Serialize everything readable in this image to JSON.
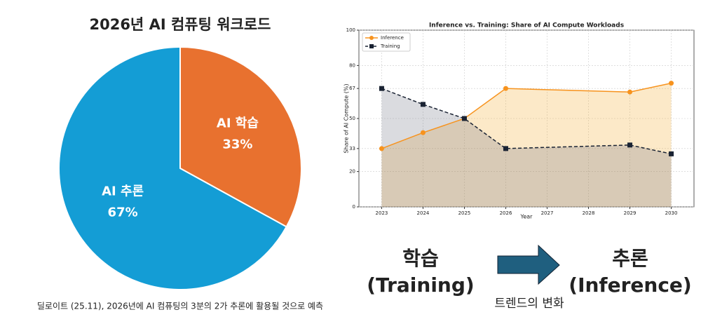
{
  "chart_data": [
    {
      "type": "pie",
      "title": "2026년 AI 컴퓨팅 워크로드",
      "categories": [
        "AI 학습",
        "AI 추론"
      ],
      "values": [
        33,
        67
      ],
      "value_labels": [
        "33%",
        "67%"
      ],
      "colors": [
        "#e8712f",
        "#149dd5"
      ],
      "caption": "딜로이트 (25.11), 2026년에 AI 컴퓨팅의 3분의 2가 추론에 활용될 것으로 예측"
    },
    {
      "type": "line",
      "title": "Inference vs. Training: Share of AI Compute Workloads",
      "x": [
        2023,
        2024,
        2025,
        2026,
        2029,
        2030
      ],
      "series": [
        {
          "name": "Inference",
          "color": "#f7931e",
          "marker": "circle",
          "dashed": false,
          "values": [
            33,
            42,
            50,
            67,
            65,
            70
          ]
        },
        {
          "name": "Training",
          "color": "#1a2333",
          "marker": "square",
          "dashed": true,
          "values": [
            67,
            58,
            50,
            33,
            35,
            30
          ]
        }
      ],
      "xlabel": "Year",
      "ylabel": "Share of AI Compute (%)",
      "xlim": [
        2022.45,
        2030.55
      ],
      "xticks": [
        2023,
        2024,
        2025,
        2026,
        2027,
        2028,
        2029,
        2030
      ],
      "ylim": [
        0,
        100
      ],
      "yticks": [
        0,
        20,
        33,
        50,
        67,
        80,
        100
      ],
      "grid": true,
      "legend": "upper left",
      "fill_colors": [
        "#f5a623",
        "#6b7080"
      ]
    }
  ],
  "diagram": {
    "from": [
      "학습",
      "(Training)"
    ],
    "to": [
      "추론",
      "(Inference)"
    ],
    "arrow_label": "트렌드의 변화"
  }
}
